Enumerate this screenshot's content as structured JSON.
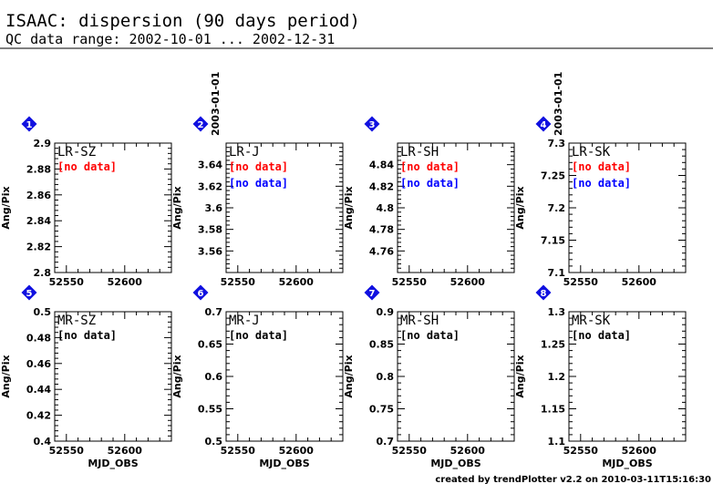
{
  "header": {
    "title": "ISAAC: dispersion (90 days period)",
    "subtitle": "QC data range: 2002-10-01 ... 2002-12-31"
  },
  "date_marker": "2003-01-01",
  "footer": "created by trendPlotter v2.2 on 2010-03-11T15:16:30",
  "chart_data": [
    {
      "type": "scatter",
      "badge": "1",
      "title": "LR-SZ",
      "notes": [
        {
          "text": "[no data]",
          "color": "#ff0000"
        }
      ],
      "ylabel": "Ang/Pix",
      "xlabel": "",
      "xlim": [
        52540,
        52640
      ],
      "xticks": [
        "52550",
        "52600"
      ],
      "ylim": [
        2.8,
        2.9
      ],
      "yticks": [
        "2.8",
        "2.82",
        "2.84",
        "2.86",
        "2.88",
        "2.9"
      ],
      "date_line": false,
      "series": []
    },
    {
      "type": "scatter",
      "badge": "2",
      "title": "LR-J",
      "notes": [
        {
          "text": "[no data]",
          "color": "#ff0000"
        },
        {
          "text": "[no data]",
          "color": "#0000ff"
        }
      ],
      "ylabel": "Ang/Pix",
      "xlabel": "",
      "xlim": [
        52540,
        52640
      ],
      "xticks": [
        "52550",
        "52600"
      ],
      "ylim": [
        3.54,
        3.66
      ],
      "yticks": [
        "3.56",
        "3.58",
        "3.6",
        "3.62",
        "3.64"
      ],
      "date_line": true,
      "series": []
    },
    {
      "type": "scatter",
      "badge": "3",
      "title": "LR-SH",
      "notes": [
        {
          "text": "[no data]",
          "color": "#ff0000"
        },
        {
          "text": "[no data]",
          "color": "#0000ff"
        }
      ],
      "ylabel": "Ang/Pix",
      "xlabel": "",
      "xlim": [
        52540,
        52640
      ],
      "xticks": [
        "52550",
        "52600"
      ],
      "ylim": [
        4.74,
        4.86
      ],
      "yticks": [
        "4.76",
        "4.78",
        "4.8",
        "4.82",
        "4.84"
      ],
      "date_line": false,
      "series": []
    },
    {
      "type": "scatter",
      "badge": "4",
      "title": "LR-SK",
      "notes": [
        {
          "text": "[no data]",
          "color": "#ff0000"
        },
        {
          "text": "[no data]",
          "color": "#0000ff"
        }
      ],
      "ylabel": "Ang/Pix",
      "xlabel": "",
      "xlim": [
        52540,
        52640
      ],
      "xticks": [
        "52550",
        "52600"
      ],
      "ylim": [
        7.1,
        7.3
      ],
      "yticks": [
        "7.1",
        "7.15",
        "7.2",
        "7.25",
        "7.3"
      ],
      "date_line": true,
      "series": []
    },
    {
      "type": "scatter",
      "badge": "5",
      "title": "MR-SZ",
      "notes": [
        {
          "text": "[no data]",
          "color": "#000000"
        }
      ],
      "ylabel": "Ang/Pix",
      "xlabel": "MJD_OBS",
      "xlim": [
        52540,
        52640
      ],
      "xticks": [
        "52550",
        "52600"
      ],
      "ylim": [
        0.4,
        0.5
      ],
      "yticks": [
        "0.4",
        "0.42",
        "0.44",
        "0.46",
        "0.48",
        "0.5"
      ],
      "date_line": false,
      "series": []
    },
    {
      "type": "scatter",
      "badge": "6",
      "title": "MR-J",
      "notes": [
        {
          "text": "[no data]",
          "color": "#000000"
        }
      ],
      "ylabel": "Ang/Pix",
      "xlabel": "MJD_OBS",
      "xlim": [
        52540,
        52640
      ],
      "xticks": [
        "52550",
        "52600"
      ],
      "ylim": [
        0.5,
        0.7
      ],
      "yticks": [
        "0.5",
        "0.55",
        "0.6",
        "0.65",
        "0.7"
      ],
      "date_line": false,
      "series": []
    },
    {
      "type": "scatter",
      "badge": "7",
      "title": "MR-SH",
      "notes": [
        {
          "text": "[no data]",
          "color": "#000000"
        }
      ],
      "ylabel": "Ang/Pix",
      "xlabel": "MJD_OBS",
      "xlim": [
        52540,
        52640
      ],
      "xticks": [
        "52550",
        "52600"
      ],
      "ylim": [
        0.7,
        0.9
      ],
      "yticks": [
        "0.7",
        "0.75",
        "0.8",
        "0.85",
        "0.9"
      ],
      "date_line": false,
      "series": []
    },
    {
      "type": "scatter",
      "badge": "8",
      "title": "MR-SK",
      "notes": [
        {
          "text": "[no data]",
          "color": "#000000"
        }
      ],
      "ylabel": "Ang/Pix",
      "xlabel": "MJD_OBS",
      "xlim": [
        52540,
        52640
      ],
      "xticks": [
        "52550",
        "52600"
      ],
      "ylim": [
        1.1,
        1.3
      ],
      "yticks": [
        "1.1",
        "1.15",
        "1.2",
        "1.25",
        "1.3"
      ],
      "date_line": false,
      "series": []
    }
  ]
}
